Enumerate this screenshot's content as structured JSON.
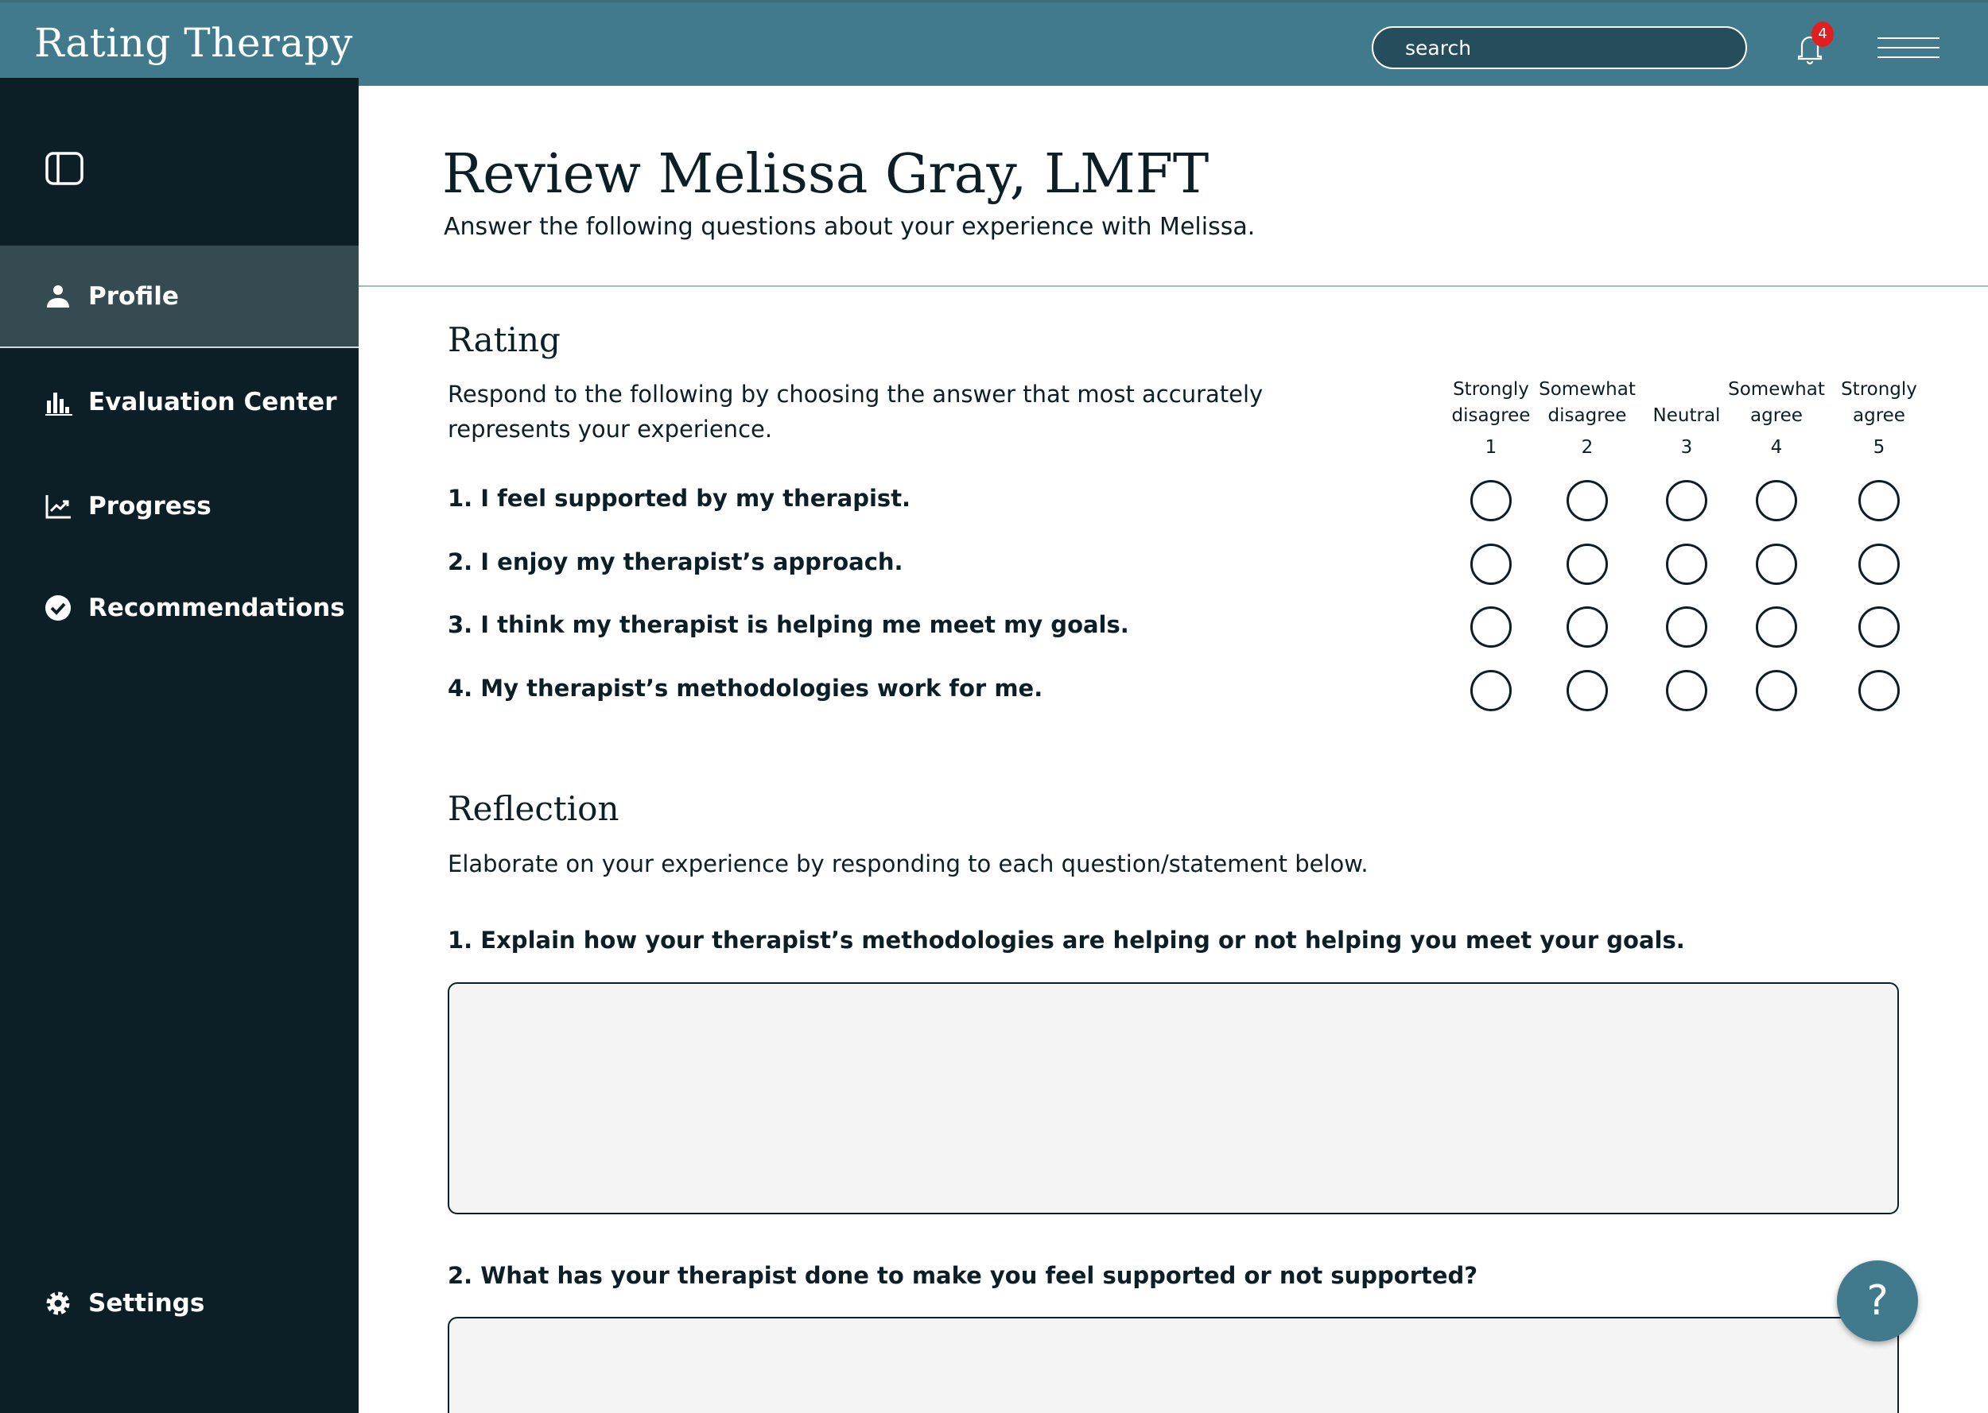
{
  "header": {
    "logo": "Rating Therapy",
    "search_placeholder": "search",
    "notification_count": "4"
  },
  "sidebar": {
    "items": [
      {
        "label": "Profile",
        "icon": "person-icon",
        "active": true
      },
      {
        "label": "Evaluation Center",
        "icon": "bar-chart-icon"
      },
      {
        "label": "Progress",
        "icon": "trend-chart-icon"
      },
      {
        "label": "Recommendations",
        "icon": "verified-check-icon"
      }
    ],
    "settings": "Settings"
  },
  "page": {
    "title": "Review Melissa Gray, LMFT",
    "subtitle": "Answer the following questions about your experience with Melissa."
  },
  "rating": {
    "heading": "Rating",
    "description_1": "Respond to the following by choosing the answer that most accurately",
    "description_2": "represents your experience.",
    "scale": [
      {
        "l1": "Strongly",
        "l2": "disagree",
        "n": "1"
      },
      {
        "l1": "Somewhat",
        "l2": "disagree",
        "n": "2"
      },
      {
        "l1": "",
        "l2": "Neutral",
        "n": "3"
      },
      {
        "l1": "Somewhat",
        "l2": "agree",
        "n": "4"
      },
      {
        "l1": "Strongly",
        "l2": "agree",
        "n": "5"
      }
    ],
    "questions": [
      "1. I feel supported by my therapist.",
      "2. I enjoy my therapist’s approach.",
      "3. I think my therapist is helping me meet my goals.",
      "4. My therapist’s methodologies work for me."
    ]
  },
  "reflection": {
    "heading": "Reflection",
    "description": "Elaborate on your experience by responding to each question/statement below.",
    "questions": [
      "1. Explain how your therapist’s methodologies are helping or not helping you meet your goals.",
      "2. What has your therapist done to make you feel supported or not supported?"
    ],
    "answers": [
      "",
      ""
    ]
  },
  "help": "?"
}
